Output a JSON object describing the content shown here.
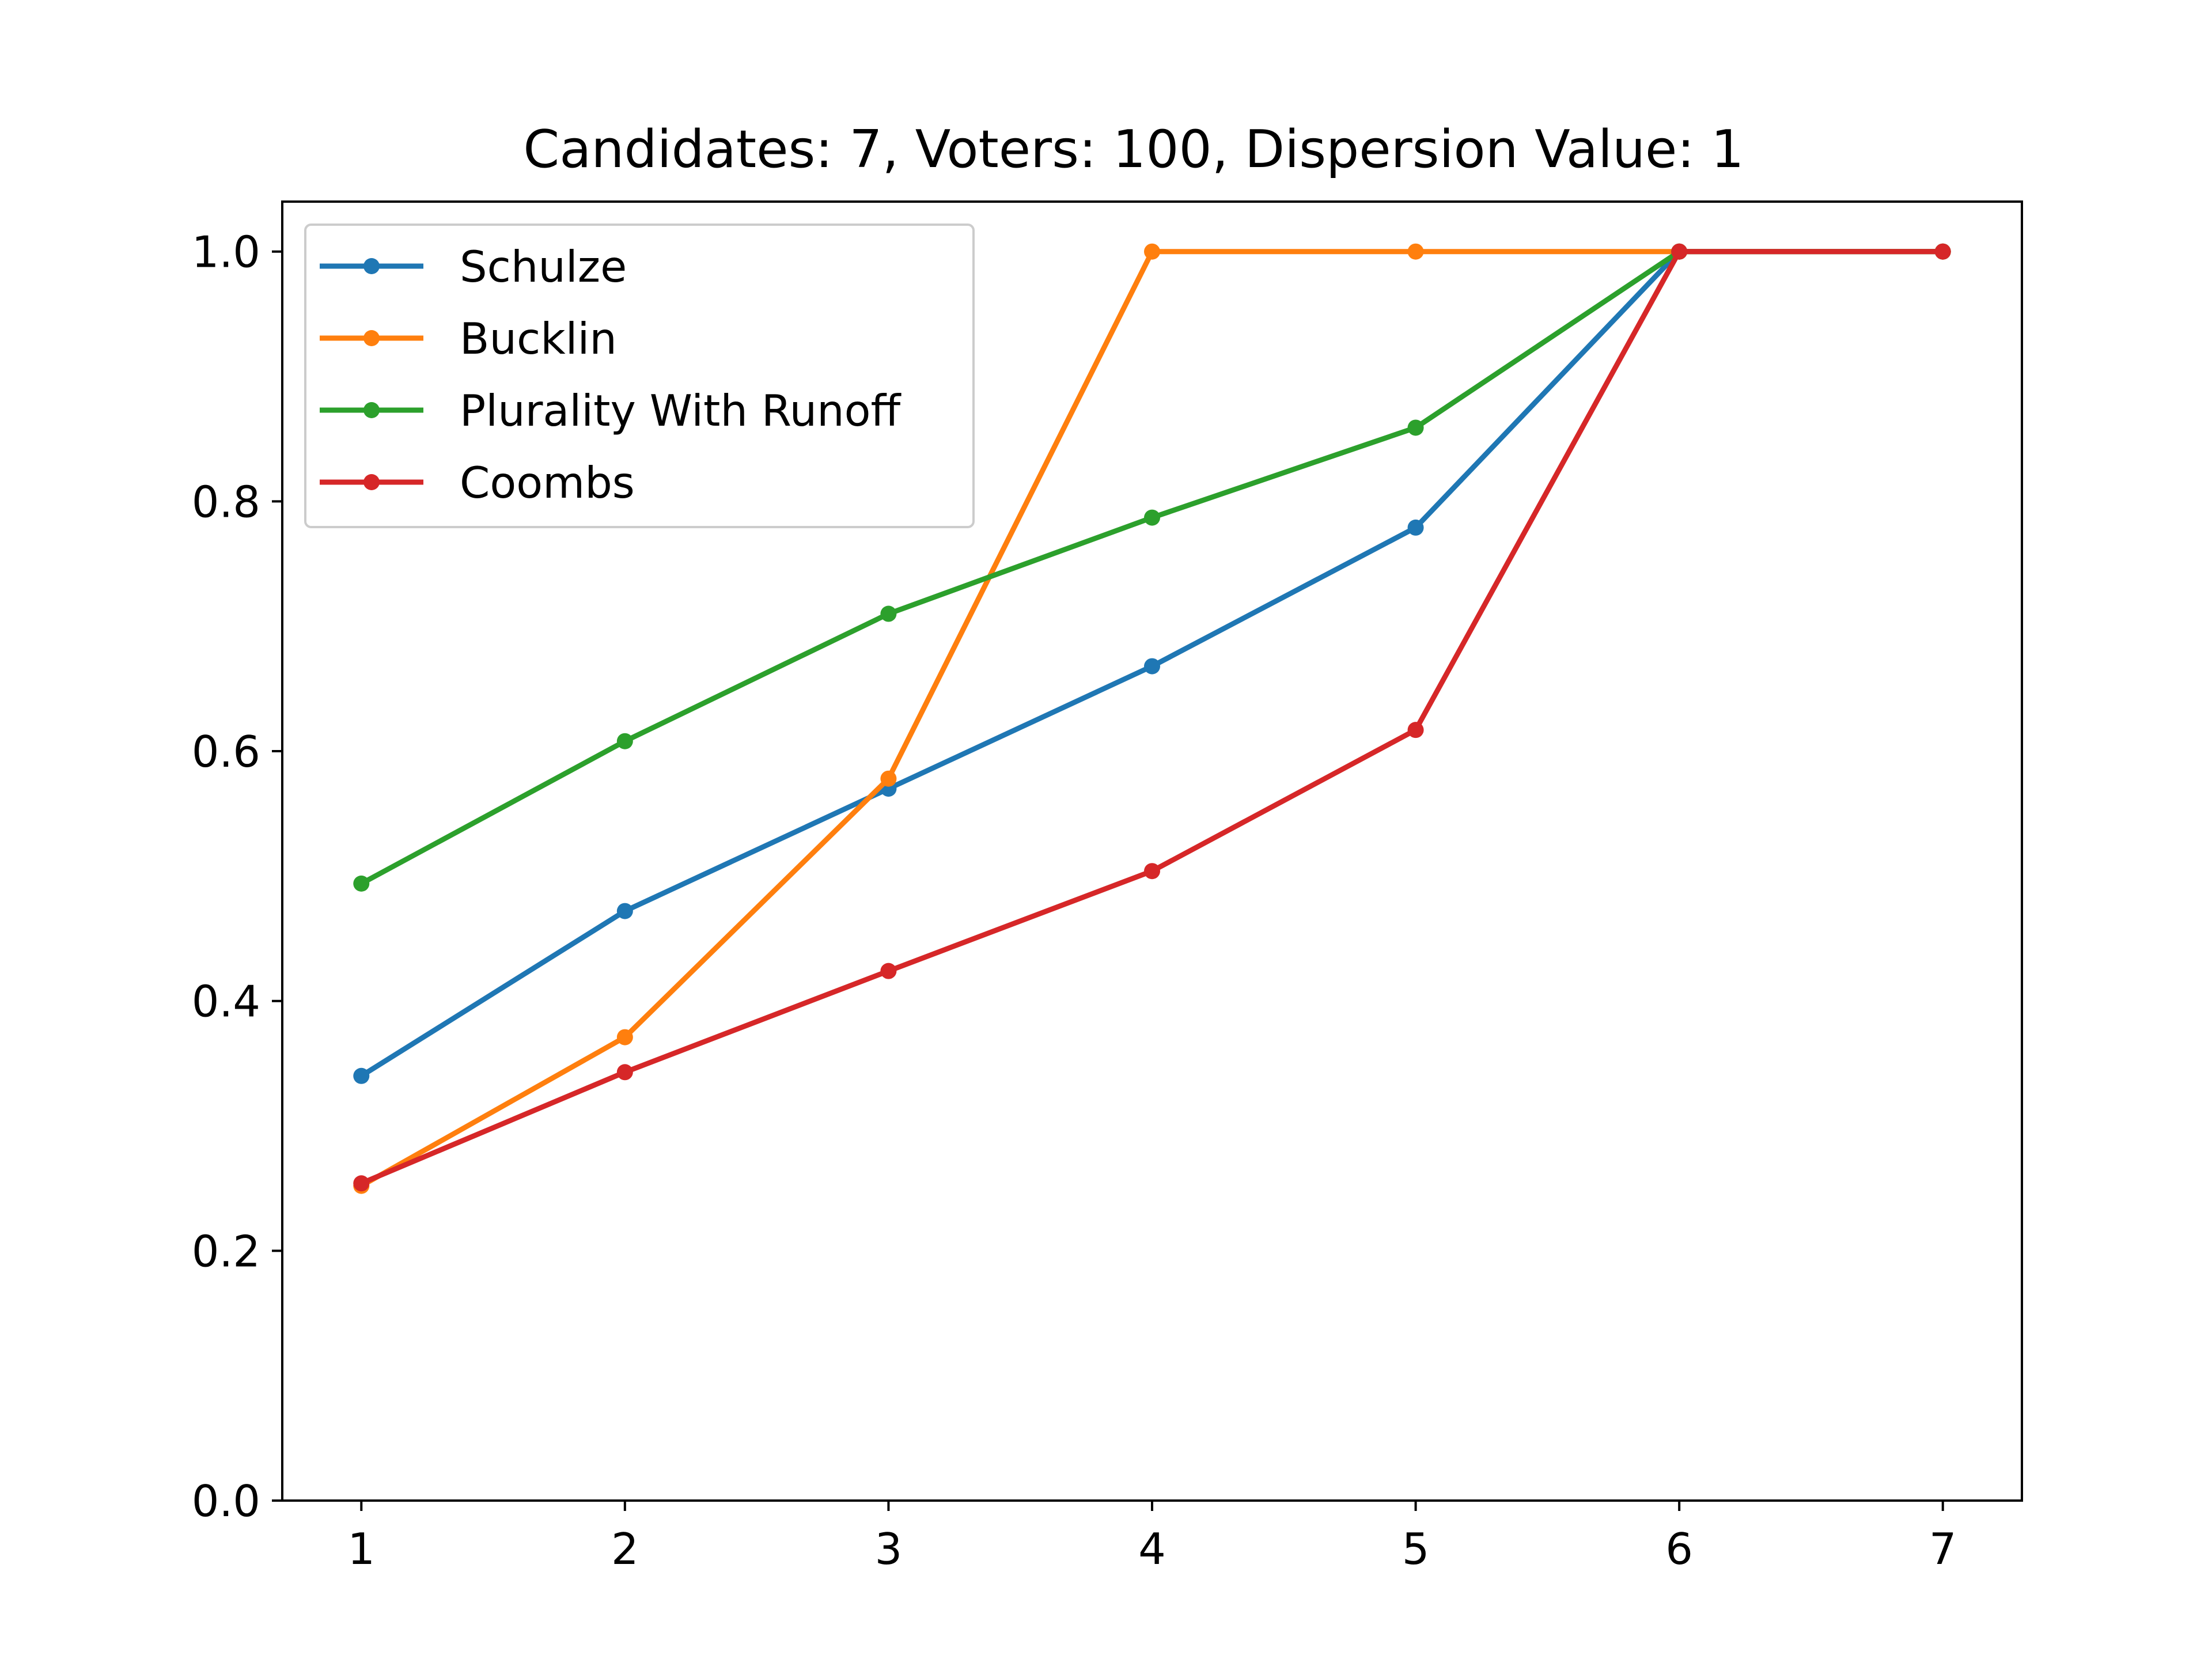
{
  "chart_data": {
    "type": "line",
    "title": "Candidates: 7, Voters: 100, Dispersion Value: 1",
    "xlabel": "",
    "ylabel": "",
    "x": [
      1,
      2,
      3,
      4,
      5,
      6,
      7
    ],
    "xlim": [
      0.7,
      7.3
    ],
    "ylim": [
      0.0,
      1.04
    ],
    "xticks": [
      "1",
      "2",
      "3",
      "4",
      "5",
      "6",
      "7"
    ],
    "yticks": [
      "0.0",
      "0.2",
      "0.4",
      "0.6",
      "0.8",
      "1.0"
    ],
    "grid": false,
    "legend_position": "top-left",
    "series": [
      {
        "name": "Schulze",
        "color": "#1f77b4",
        "values": [
          0.34,
          0.472,
          0.57,
          0.668,
          0.779,
          1.0,
          1.0
        ]
      },
      {
        "name": "Bucklin",
        "color": "#ff7f0e",
        "values": [
          0.252,
          0.371,
          0.578,
          1.0,
          1.0,
          1.0,
          1.0
        ]
      },
      {
        "name": "Plurality With Runoff",
        "color": "#2ca02c",
        "values": [
          0.494,
          0.608,
          0.71,
          0.787,
          0.859,
          1.0,
          1.0
        ]
      },
      {
        "name": "Coombs",
        "color": "#d62728",
        "values": [
          0.254,
          0.343,
          0.424,
          0.504,
          0.617,
          1.0,
          1.0
        ]
      }
    ]
  }
}
